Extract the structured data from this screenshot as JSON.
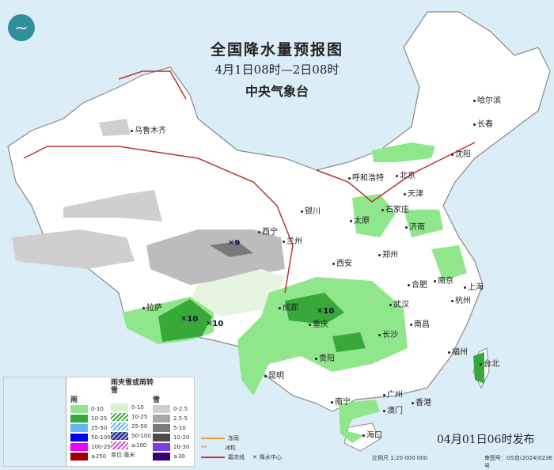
{
  "header": {
    "title": "全国降水量预报图",
    "time_range": "4月1日08时—2日08时",
    "issuer": "中央气象台",
    "logo_icon": "cma-logo"
  },
  "cities": [
    {
      "name": "乌鲁木齐"
    },
    {
      "name": "哈尔滨"
    },
    {
      "name": "长春"
    },
    {
      "name": "沈阳"
    },
    {
      "name": "北京"
    },
    {
      "name": "天津"
    },
    {
      "name": "呼和浩特"
    },
    {
      "name": "石家庄"
    },
    {
      "name": "太原"
    },
    {
      "name": "济南"
    },
    {
      "name": "银川"
    },
    {
      "name": "西宁"
    },
    {
      "name": "兰州"
    },
    {
      "name": "郑州"
    },
    {
      "name": "西安"
    },
    {
      "name": "合肥"
    },
    {
      "name": "南京"
    },
    {
      "name": "上海"
    },
    {
      "name": "杭州"
    },
    {
      "name": "武汉"
    },
    {
      "name": "成都"
    },
    {
      "name": "重庆"
    },
    {
      "name": "拉萨"
    },
    {
      "name": "长沙"
    },
    {
      "name": "南昌"
    },
    {
      "name": "贵阳"
    },
    {
      "name": "福州"
    },
    {
      "name": "台北"
    },
    {
      "name": "昆明"
    },
    {
      "name": "南宁"
    },
    {
      "name": "广州"
    },
    {
      "name": "香港"
    },
    {
      "name": "澳门"
    },
    {
      "name": "海口"
    }
  ],
  "precip_centers": [
    {
      "value": "9"
    },
    {
      "value": "10"
    },
    {
      "value": "10"
    },
    {
      "value": "10"
    }
  ],
  "legend": {
    "rain": {
      "title": "雨",
      "items": [
        {
          "label": "0-10",
          "color": "#90e68a"
        },
        {
          "label": "10-25",
          "color": "#39a83a"
        },
        {
          "label": "25-50",
          "color": "#5fb8f0"
        },
        {
          "label": "50-100",
          "color": "#0000f0"
        },
        {
          "label": "100-250",
          "color": "#f000f0"
        },
        {
          "label": "≥250",
          "color": "#a00000"
        }
      ]
    },
    "sleet": {
      "title": "雨夹雪或雨转雪",
      "items": [
        {
          "label": "0-10",
          "color": "#d8f2d0"
        },
        {
          "label": "10-25",
          "color": "#6cc06a"
        },
        {
          "label": "25-50",
          "color": "#9ad0f0"
        },
        {
          "label": "50-100",
          "color": "#4040c0"
        },
        {
          "label": "≥100",
          "color": "#e070e0"
        }
      ]
    },
    "snow": {
      "title": "雪",
      "items": [
        {
          "label": "0-2.5",
          "color": "#cfcfcf"
        },
        {
          "label": "2.5-5",
          "color": "#a8a8a8"
        },
        {
          "label": "5-10",
          "color": "#7a7a7a"
        },
        {
          "label": "10-20",
          "color": "#4a4a4a"
        },
        {
          "label": "20-30",
          "color": "#7b3fe0"
        },
        {
          "label": "≥30",
          "color": "#3a0070"
        }
      ]
    },
    "unit": "单位:毫米",
    "symbols": [
      {
        "label": "冻雨",
        "color": "#f0a030"
      },
      {
        "label": "冰粒",
        "color": "#e05030"
      },
      {
        "label": "霜冻线",
        "color": "#c03030"
      },
      {
        "label": "降水中心",
        "color": "#222222"
      }
    ]
  },
  "footer": {
    "publish": "04月01日06时发布",
    "scale": "比例尺 1:20 000 000",
    "review_no": "审图号：GS京(2024)0236号"
  }
}
